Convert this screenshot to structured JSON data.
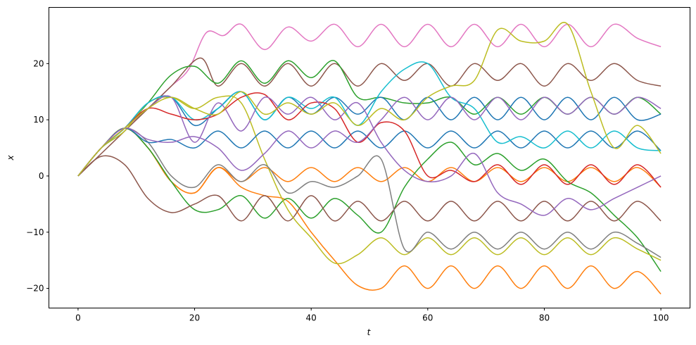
{
  "chart_data": {
    "type": "line",
    "title": "",
    "xlabel": "t",
    "ylabel": "x",
    "xlim": [
      -5,
      105
    ],
    "ylim": [
      -23.5,
      30
    ],
    "xticks": [
      0,
      20,
      40,
      60,
      80,
      100
    ],
    "yticks": [
      -20,
      -10,
      0,
      10,
      20
    ],
    "grid": false,
    "legend": "none",
    "colors": [
      "#1f77b4",
      "#ff7f0e",
      "#2ca02c",
      "#d62728",
      "#9467bd",
      "#8c564b",
      "#e377c2",
      "#7f7f7f",
      "#bcbd22",
      "#17becf"
    ],
    "series": [
      {
        "color": "#e377c2",
        "x": [
          0,
          4,
          8,
          12,
          16,
          19,
          22,
          25,
          28,
          32,
          36,
          40,
          44,
          48,
          52,
          56,
          60,
          64,
          68,
          72,
          76,
          80,
          84,
          88,
          92,
          96,
          100
        ],
        "y": [
          0,
          5,
          8.5,
          12,
          16,
          19,
          25.5,
          25,
          27,
          22.5,
          26.5,
          24,
          27,
          23,
          27,
          23,
          27,
          23,
          27,
          23,
          27,
          23,
          27,
          23,
          27,
          24.5,
          23
        ]
      },
      {
        "color": "#8c564b",
        "x": [
          0,
          4,
          8,
          12,
          16,
          21,
          24,
          28,
          32,
          36,
          40,
          44,
          48,
          52,
          56,
          60,
          64,
          68,
          72,
          76,
          80,
          84,
          88,
          92,
          96,
          100
        ],
        "y": [
          0,
          4,
          8,
          12,
          16,
          21,
          16,
          20,
          16,
          20,
          16,
          20,
          16,
          20,
          17,
          20,
          16,
          20,
          17,
          20,
          16,
          20,
          17,
          20,
          17,
          16
        ]
      },
      {
        "color": "#ff7f0e",
        "x": [
          0,
          4,
          8,
          12,
          16,
          20,
          24,
          28,
          32,
          36,
          40,
          44,
          48,
          52,
          56,
          60,
          64,
          68,
          72,
          76,
          80,
          84,
          88,
          92,
          96,
          100
        ],
        "y": [
          0,
          5,
          8.5,
          5,
          -1,
          -3,
          1.5,
          -2,
          -3.5,
          -4.5,
          -10,
          -15,
          -19.5,
          -20,
          -16,
          -20,
          -16,
          -20,
          -16,
          -20,
          -16,
          -20,
          -16,
          -20,
          -17,
          -21
        ]
      },
      {
        "color": "#ff7f0e",
        "x": [
          0,
          4,
          8,
          12,
          16,
          20,
          24,
          28,
          32,
          36,
          40,
          44,
          48,
          52,
          56,
          60,
          64,
          68,
          72,
          76,
          80,
          84,
          88,
          92,
          96,
          100
        ],
        "y": [
          0,
          5,
          8.5,
          5,
          -1,
          -3,
          1.5,
          -1,
          1.5,
          -1,
          1.5,
          -1,
          1.5,
          -1,
          1.5,
          -1,
          1.5,
          -1,
          1.5,
          -1,
          1.5,
          -1,
          1.5,
          -1,
          1.5,
          -2
        ]
      },
      {
        "color": "#2ca02c",
        "x": [
          0,
          4,
          8,
          12,
          16,
          20,
          24,
          28,
          32,
          36,
          40,
          44,
          48,
          52,
          56,
          60,
          64,
          68,
          72,
          76,
          80,
          84,
          88,
          92,
          96,
          100
        ],
        "y": [
          0,
          5,
          8.5,
          5,
          -1,
          -6,
          -6,
          -3.5,
          -7.5,
          -4,
          -7.5,
          -4,
          -7,
          -10,
          -2,
          3,
          6,
          2,
          4,
          1,
          3,
          -1,
          -3,
          -7,
          -11,
          -17
        ]
      },
      {
        "color": "#2ca02c",
        "x": [
          0,
          4,
          8,
          12,
          16,
          20,
          24,
          28,
          32,
          36,
          40,
          44,
          48,
          52,
          56,
          60,
          64,
          68,
          72,
          76,
          80,
          84,
          88,
          92,
          96,
          100
        ],
        "y": [
          0,
          5,
          8.5,
          13,
          18,
          19.5,
          16.5,
          20.5,
          16.5,
          20.5,
          17.5,
          20.5,
          14,
          14,
          13,
          13,
          14,
          11,
          14,
          11,
          14,
          11,
          14,
          11,
          14,
          11
        ]
      },
      {
        "color": "#8c564b",
        "x": [
          0,
          4,
          8,
          12,
          16,
          20,
          24,
          28,
          32,
          36,
          40,
          44,
          48,
          52,
          56,
          60,
          64,
          68,
          72,
          76,
          80,
          84,
          88,
          92,
          96,
          100
        ],
        "y": [
          0,
          3.5,
          2,
          -4,
          -6.5,
          -5,
          -3.5,
          -8,
          -3.5,
          -8,
          -3.5,
          -8,
          -4.5,
          -8,
          -4.5,
          -8,
          -4.5,
          -8,
          -4.5,
          -8,
          -4.5,
          -8,
          -4.5,
          -8,
          -4.5,
          -8
        ]
      },
      {
        "color": "#bcbd22",
        "x": [
          0,
          4,
          8,
          12,
          16,
          20,
          24,
          28,
          32,
          36,
          40,
          44,
          48,
          52,
          56,
          60,
          64,
          68,
          72,
          76,
          80,
          84,
          88,
          92,
          96,
          100
        ],
        "y": [
          0,
          5,
          8,
          13,
          14,
          12,
          14,
          13,
          3,
          -6,
          -11,
          -15.5,
          -14,
          -11,
          -14,
          -11,
          -14,
          -11,
          -14,
          -11,
          -14,
          -11,
          -14,
          -11,
          -13,
          -15
        ]
      },
      {
        "color": "#7f7f7f",
        "x": [
          0,
          4,
          8,
          12,
          16,
          20,
          24,
          28,
          32,
          36,
          40,
          44,
          48,
          52,
          56,
          60,
          64,
          68,
          72,
          76,
          80,
          84,
          88,
          92,
          96,
          100
        ],
        "y": [
          0,
          5,
          8.5,
          6,
          0,
          -2,
          2,
          -1,
          2,
          -3,
          -1,
          -2,
          0,
          3,
          -13,
          -10,
          -13,
          -10,
          -13,
          -10,
          -13,
          -10,
          -13,
          -10,
          -12,
          -14.5
        ]
      },
      {
        "color": "#1f77b4",
        "x": [
          0,
          4,
          8,
          12,
          16,
          20,
          24,
          28,
          32,
          36,
          40,
          44,
          48,
          52,
          56,
          60,
          64,
          68,
          72,
          76,
          80,
          84,
          88,
          92,
          96,
          100
        ],
        "y": [
          0,
          5,
          8.5,
          13,
          14,
          9,
          12,
          15,
          10,
          14,
          11,
          14,
          11,
          14,
          10,
          14,
          10,
          14,
          10,
          14,
          10,
          14,
          10,
          14,
          10,
          11
        ]
      },
      {
        "color": "#1f77b4",
        "x": [
          0,
          4,
          8,
          12,
          16,
          20,
          24,
          28,
          32,
          36,
          40,
          44,
          48,
          52,
          56,
          60,
          64,
          68,
          72,
          76,
          80,
          84,
          88,
          92,
          96,
          100
        ],
        "y": [
          0,
          5,
          8.5,
          6,
          6.5,
          5,
          8,
          5,
          8,
          5,
          8,
          5,
          8,
          5,
          8,
          5,
          8,
          5,
          8,
          5,
          8,
          5,
          8,
          5,
          8,
          4.5
        ]
      },
      {
        "color": "#17becf",
        "x": [
          0,
          4,
          8,
          12,
          16,
          20,
          24,
          28,
          32,
          36,
          40,
          44,
          48,
          52,
          56,
          60,
          64,
          68,
          72,
          76,
          80,
          84,
          88,
          92,
          96,
          100
        ],
        "y": [
          0,
          5,
          8.5,
          13,
          14,
          10,
          12,
          15,
          10,
          14,
          12,
          14,
          9,
          15,
          19,
          20,
          14,
          12,
          6,
          7,
          5,
          8,
          5,
          8,
          5,
          4.5
        ]
      },
      {
        "color": "#d62728",
        "x": [
          0,
          4,
          8,
          12,
          16,
          20,
          24,
          28,
          32,
          36,
          40,
          44,
          48,
          52,
          56,
          60,
          64,
          68,
          72,
          76,
          80,
          84,
          88,
          92,
          96,
          100
        ],
        "y": [
          0,
          5,
          8.5,
          12,
          11,
          10,
          11,
          14,
          14.5,
          10,
          13,
          12,
          6,
          9.5,
          8,
          0,
          1,
          -1,
          2,
          -1.5,
          2,
          -1.5,
          2,
          -1.5,
          2,
          -2
        ]
      },
      {
        "color": "#9467bd",
        "x": [
          0,
          4,
          8,
          12,
          16,
          20,
          24,
          28,
          32,
          36,
          40,
          44,
          48,
          52,
          56,
          60,
          64,
          68,
          72,
          76,
          80,
          84,
          88,
          92,
          96,
          100
        ],
        "y": [
          0,
          5,
          8.5,
          12,
          14,
          6,
          13,
          8,
          14,
          11,
          14,
          10,
          13,
          6,
          1,
          -1,
          0,
          4,
          -3,
          -5,
          -7,
          -4,
          -6,
          -4,
          -2,
          0
        ]
      },
      {
        "color": "#9467bd",
        "x": [
          0,
          4,
          8,
          12,
          16,
          20,
          24,
          28,
          32,
          36,
          40,
          44,
          48,
          52,
          56,
          60,
          64,
          68,
          72,
          76,
          80,
          84,
          88,
          92,
          96,
          100
        ],
        "y": [
          0,
          5,
          8.5,
          6.5,
          6,
          7,
          5,
          1,
          4,
          8,
          5,
          8,
          6,
          10,
          14,
          10,
          14,
          10,
          14,
          10,
          14,
          11,
          14,
          11,
          14,
          12
        ]
      },
      {
        "color": "#bcbd22",
        "x": [
          0,
          4,
          8,
          12,
          16,
          20,
          24,
          28,
          32,
          36,
          40,
          44,
          48,
          52,
          56,
          60,
          64,
          68,
          72,
          76,
          80,
          84,
          88,
          92,
          96,
          100
        ],
        "y": [
          0,
          5,
          8.5,
          12,
          14,
          12,
          11,
          15,
          11,
          13,
          11,
          13,
          9,
          12,
          10,
          14,
          16,
          17,
          26,
          24,
          24,
          27,
          15,
          5,
          9,
          4
        ]
      }
    ]
  }
}
